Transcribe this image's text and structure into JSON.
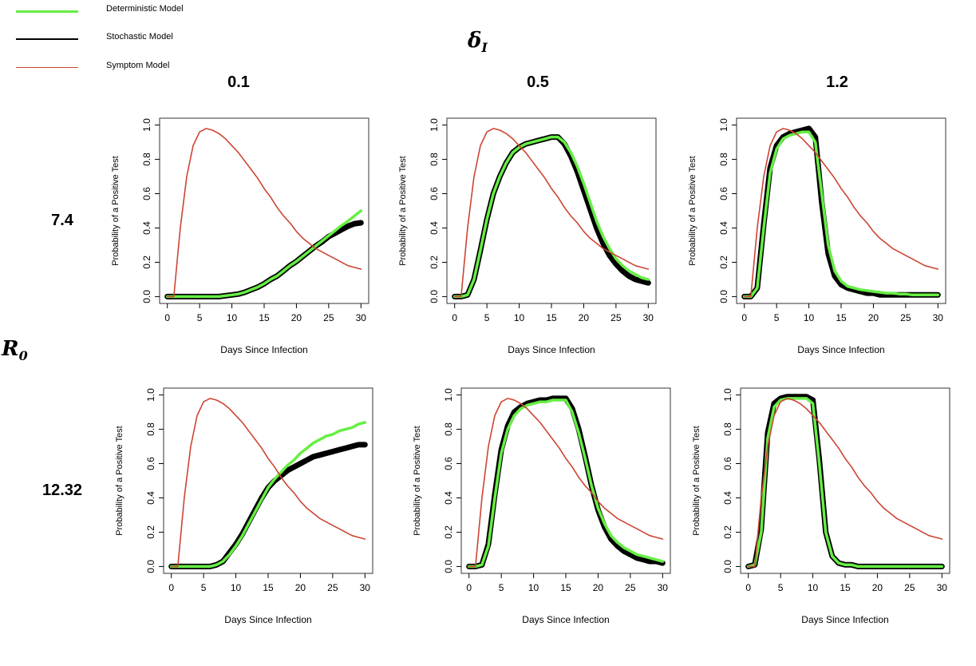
{
  "legend": {
    "items": [
      {
        "label": "Deterministic Model",
        "color": "#66ee44"
      },
      {
        "label": "Stochastic Model",
        "color": "#000000"
      },
      {
        "label": "Symptom Model",
        "color": "#cd4433"
      }
    ]
  },
  "delta_symbol": {
    "base": "δ",
    "sub": "I"
  },
  "r0_symbol": {
    "base": "R",
    "sub": "0"
  },
  "columns": [
    "0.1",
    "0.5",
    "1.2"
  ],
  "rows": [
    "7.4",
    "12.32"
  ],
  "chart_data": [
    {
      "type": "line",
      "row": "7.4",
      "col": "0.1",
      "xlabel": "Days Since Infection",
      "ylabel": "Probability of a Positive Test",
      "xlim": [
        0,
        30
      ],
      "ylim": [
        0,
        1
      ],
      "xticks": [
        "0",
        "5",
        "10",
        "15",
        "20",
        "25",
        "30"
      ],
      "yticks": [
        "0.0",
        "0.2",
        "0.4",
        "0.6",
        "0.8",
        "1.0"
      ],
      "x": [
        0,
        1,
        2,
        3,
        4,
        5,
        6,
        7,
        8,
        9,
        10,
        11,
        12,
        13,
        14,
        15,
        16,
        17,
        18,
        19,
        20,
        21,
        22,
        23,
        24,
        25,
        26,
        27,
        28,
        29,
        30
      ],
      "series": [
        {
          "name": "Symptom Model",
          "values": [
            0,
            0,
            0.4,
            0.7,
            0.88,
            0.96,
            0.98,
            0.97,
            0.95,
            0.92,
            0.88,
            0.84,
            0.79,
            0.74,
            0.69,
            0.63,
            0.58,
            0.52,
            0.47,
            0.43,
            0.38,
            0.34,
            0.31,
            0.28,
            0.26,
            0.24,
            0.22,
            0.2,
            0.18,
            0.17,
            0.16
          ]
        },
        {
          "name": "Deterministic Model",
          "values": [
            0,
            0,
            0,
            0,
            0,
            0,
            0,
            0,
            0,
            0.005,
            0.01,
            0.015,
            0.025,
            0.04,
            0.055,
            0.075,
            0.1,
            0.12,
            0.15,
            0.18,
            0.205,
            0.235,
            0.265,
            0.295,
            0.325,
            0.355,
            0.385,
            0.415,
            0.44,
            0.47,
            0.5
          ]
        },
        {
          "name": "Stochastic Model",
          "values": [
            0,
            0,
            0,
            0,
            0,
            0,
            0,
            0,
            0,
            0.005,
            0.01,
            0.015,
            0.025,
            0.04,
            0.055,
            0.075,
            0.1,
            0.12,
            0.15,
            0.18,
            0.205,
            0.235,
            0.265,
            0.295,
            0.32,
            0.35,
            0.37,
            0.39,
            0.41,
            0.425,
            0.43
          ]
        }
      ]
    },
    {
      "type": "line",
      "row": "7.4",
      "col": "0.5",
      "xlabel": "Days Since Infection",
      "ylabel": "Probability of a Positive Test",
      "xlim": [
        0,
        30
      ],
      "ylim": [
        0,
        1
      ],
      "xticks": [
        "0",
        "5",
        "10",
        "15",
        "20",
        "25",
        "30"
      ],
      "yticks": [
        "0.0",
        "0.2",
        "0.4",
        "0.6",
        "0.8",
        "1.0"
      ],
      "x": [
        0,
        1,
        2,
        3,
        4,
        5,
        6,
        7,
        8,
        9,
        10,
        11,
        12,
        13,
        14,
        15,
        16,
        17,
        18,
        19,
        20,
        21,
        22,
        23,
        24,
        25,
        26,
        27,
        28,
        29,
        30
      ],
      "series": [
        {
          "name": "Symptom Model",
          "values": [
            0,
            0,
            0.4,
            0.7,
            0.88,
            0.96,
            0.98,
            0.97,
            0.95,
            0.92,
            0.88,
            0.84,
            0.79,
            0.74,
            0.69,
            0.63,
            0.58,
            0.52,
            0.47,
            0.43,
            0.38,
            0.34,
            0.31,
            0.28,
            0.26,
            0.24,
            0.22,
            0.2,
            0.18,
            0.17,
            0.16
          ]
        },
        {
          "name": "Deterministic Model",
          "values": [
            0,
            0,
            0.01,
            0.1,
            0.27,
            0.45,
            0.6,
            0.7,
            0.78,
            0.84,
            0.87,
            0.89,
            0.9,
            0.91,
            0.92,
            0.93,
            0.93,
            0.9,
            0.84,
            0.76,
            0.66,
            0.55,
            0.44,
            0.35,
            0.28,
            0.22,
            0.18,
            0.15,
            0.13,
            0.11,
            0.1
          ]
        },
        {
          "name": "Stochastic Model",
          "values": [
            0,
            0,
            0.01,
            0.1,
            0.27,
            0.45,
            0.6,
            0.7,
            0.78,
            0.84,
            0.87,
            0.89,
            0.9,
            0.91,
            0.92,
            0.93,
            0.93,
            0.89,
            0.82,
            0.73,
            0.62,
            0.51,
            0.4,
            0.31,
            0.24,
            0.19,
            0.15,
            0.12,
            0.1,
            0.09,
            0.08
          ]
        }
      ]
    },
    {
      "type": "line",
      "row": "7.4",
      "col": "1.2",
      "xlabel": "Days Since Infection",
      "ylabel": "Probability of a Positive Test",
      "xlim": [
        0,
        30
      ],
      "ylim": [
        0,
        1
      ],
      "xticks": [
        "0",
        "5",
        "10",
        "15",
        "20",
        "25",
        "30"
      ],
      "yticks": [
        "0.0",
        "0.2",
        "0.4",
        "0.6",
        "0.8",
        "1.0"
      ],
      "x": [
        0,
        1,
        2,
        3,
        4,
        5,
        6,
        7,
        8,
        9,
        10,
        11,
        12,
        13,
        14,
        15,
        16,
        17,
        18,
        19,
        20,
        21,
        22,
        23,
        24,
        25,
        26,
        27,
        28,
        29,
        30
      ],
      "series": [
        {
          "name": "Symptom Model",
          "values": [
            0,
            0,
            0.4,
            0.7,
            0.88,
            0.96,
            0.98,
            0.97,
            0.95,
            0.92,
            0.88,
            0.84,
            0.79,
            0.74,
            0.69,
            0.63,
            0.58,
            0.52,
            0.47,
            0.43,
            0.38,
            0.34,
            0.31,
            0.28,
            0.26,
            0.24,
            0.22,
            0.2,
            0.18,
            0.17,
            0.16
          ]
        },
        {
          "name": "Deterministic Model",
          "values": [
            0,
            0,
            0.05,
            0.4,
            0.72,
            0.86,
            0.92,
            0.94,
            0.95,
            0.96,
            0.96,
            0.9,
            0.6,
            0.3,
            0.15,
            0.09,
            0.06,
            0.05,
            0.04,
            0.035,
            0.03,
            0.025,
            0.02,
            0.02,
            0.015,
            0.015,
            0.01,
            0.01,
            0.01,
            0.01,
            0.01
          ]
        },
        {
          "name": "Stochastic Model",
          "values": [
            0,
            0,
            0.05,
            0.42,
            0.75,
            0.88,
            0.93,
            0.95,
            0.96,
            0.97,
            0.98,
            0.93,
            0.55,
            0.25,
            0.12,
            0.07,
            0.05,
            0.04,
            0.03,
            0.02,
            0.02,
            0.01,
            0.01,
            0.01,
            0.01,
            0.01,
            0.01,
            0.01,
            0.01,
            0.01,
            0.01
          ]
        }
      ]
    },
    {
      "type": "line",
      "row": "12.32",
      "col": "0.1",
      "xlabel": "Days Since Infection",
      "ylabel": "Probability of a Positive Test",
      "xlim": [
        0,
        30
      ],
      "ylim": [
        0,
        1
      ],
      "xticks": [
        "0",
        "5",
        "10",
        "15",
        "20",
        "25",
        "30"
      ],
      "yticks": [
        "0.0",
        "0.2",
        "0.4",
        "0.6",
        "0.8",
        "1.0"
      ],
      "x": [
        0,
        1,
        2,
        3,
        4,
        5,
        6,
        7,
        8,
        9,
        10,
        11,
        12,
        13,
        14,
        15,
        16,
        17,
        18,
        19,
        20,
        21,
        22,
        23,
        24,
        25,
        26,
        27,
        28,
        29,
        30
      ],
      "series": [
        {
          "name": "Symptom Model",
          "values": [
            0,
            0,
            0.4,
            0.7,
            0.88,
            0.96,
            0.98,
            0.97,
            0.95,
            0.92,
            0.88,
            0.84,
            0.79,
            0.74,
            0.69,
            0.63,
            0.58,
            0.52,
            0.47,
            0.43,
            0.38,
            0.34,
            0.31,
            0.28,
            0.26,
            0.24,
            0.22,
            0.2,
            0.18,
            0.17,
            0.16
          ]
        },
        {
          "name": "Deterministic Model",
          "values": [
            0,
            0,
            0,
            0,
            0,
            0,
            0,
            0.01,
            0.03,
            0.07,
            0.12,
            0.18,
            0.25,
            0.32,
            0.39,
            0.46,
            0.51,
            0.55,
            0.59,
            0.62,
            0.66,
            0.69,
            0.72,
            0.74,
            0.76,
            0.77,
            0.79,
            0.8,
            0.81,
            0.83,
            0.84
          ]
        },
        {
          "name": "Stochastic Model",
          "values": [
            0,
            0,
            0,
            0,
            0,
            0,
            0,
            0.01,
            0.03,
            0.08,
            0.13,
            0.19,
            0.26,
            0.33,
            0.4,
            0.46,
            0.5,
            0.53,
            0.56,
            0.58,
            0.6,
            0.62,
            0.64,
            0.65,
            0.66,
            0.67,
            0.68,
            0.69,
            0.7,
            0.71,
            0.71
          ]
        }
      ]
    },
    {
      "type": "line",
      "row": "12.32",
      "col": "0.5",
      "xlabel": "Days Since Infection",
      "ylabel": "Probability of a Positive Test",
      "xlim": [
        0,
        30
      ],
      "ylim": [
        0,
        1
      ],
      "xticks": [
        "0",
        "5",
        "10",
        "15",
        "20",
        "25",
        "30"
      ],
      "yticks": [
        "0.0",
        "0.2",
        "0.4",
        "0.6",
        "0.8",
        "1.0"
      ],
      "x": [
        0,
        1,
        2,
        3,
        4,
        5,
        6,
        7,
        8,
        9,
        10,
        11,
        12,
        13,
        14,
        15,
        16,
        17,
        18,
        19,
        20,
        21,
        22,
        23,
        24,
        25,
        26,
        27,
        28,
        29,
        30
      ],
      "series": [
        {
          "name": "Symptom Model",
          "values": [
            0,
            0,
            0.4,
            0.7,
            0.88,
            0.96,
            0.98,
            0.97,
            0.95,
            0.92,
            0.88,
            0.84,
            0.79,
            0.74,
            0.69,
            0.63,
            0.58,
            0.52,
            0.47,
            0.43,
            0.38,
            0.34,
            0.31,
            0.28,
            0.26,
            0.24,
            0.22,
            0.2,
            0.18,
            0.17,
            0.16
          ]
        },
        {
          "name": "Deterministic Model",
          "values": [
            0,
            0,
            0.01,
            0.12,
            0.4,
            0.66,
            0.8,
            0.88,
            0.92,
            0.94,
            0.95,
            0.96,
            0.96,
            0.97,
            0.97,
            0.97,
            0.9,
            0.78,
            0.63,
            0.47,
            0.34,
            0.25,
            0.18,
            0.14,
            0.11,
            0.09,
            0.07,
            0.06,
            0.05,
            0.04,
            0.03
          ]
        },
        {
          "name": "Stochastic Model",
          "values": [
            0,
            0,
            0.01,
            0.13,
            0.42,
            0.68,
            0.82,
            0.9,
            0.93,
            0.95,
            0.96,
            0.97,
            0.97,
            0.98,
            0.98,
            0.98,
            0.92,
            0.8,
            0.64,
            0.47,
            0.33,
            0.23,
            0.16,
            0.12,
            0.09,
            0.07,
            0.05,
            0.04,
            0.03,
            0.03,
            0.02
          ]
        }
      ]
    },
    {
      "type": "line",
      "row": "12.32",
      "col": "1.2",
      "xlabel": "Days Since Infection",
      "ylabel": "Probability of a Positive Test",
      "xlim": [
        0,
        30
      ],
      "ylim": [
        0,
        1
      ],
      "xticks": [
        "0",
        "5",
        "10",
        "15",
        "20",
        "25",
        "30"
      ],
      "yticks": [
        "0.0",
        "0.2",
        "0.4",
        "0.6",
        "0.8",
        "1.0"
      ],
      "x": [
        0,
        1,
        2,
        3,
        4,
        5,
        6,
        7,
        8,
        9,
        10,
        11,
        12,
        13,
        14,
        15,
        16,
        17,
        18,
        19,
        20,
        21,
        22,
        23,
        24,
        25,
        26,
        27,
        28,
        29,
        30
      ],
      "series": [
        {
          "name": "Symptom Model",
          "values": [
            0,
            0,
            0.4,
            0.7,
            0.88,
            0.96,
            0.98,
            0.97,
            0.95,
            0.92,
            0.88,
            0.84,
            0.79,
            0.74,
            0.69,
            0.63,
            0.58,
            0.52,
            0.47,
            0.43,
            0.38,
            0.34,
            0.31,
            0.28,
            0.26,
            0.24,
            0.22,
            0.2,
            0.18,
            0.17,
            0.16
          ]
        },
        {
          "name": "Deterministic Model",
          "values": [
            0,
            0.01,
            0.2,
            0.75,
            0.93,
            0.97,
            0.98,
            0.98,
            0.98,
            0.98,
            0.95,
            0.6,
            0.2,
            0.06,
            0.02,
            0.01,
            0.01,
            0,
            0,
            0,
            0,
            0,
            0,
            0,
            0,
            0,
            0,
            0,
            0,
            0,
            0
          ]
        },
        {
          "name": "Stochastic Model",
          "values": [
            0,
            0.01,
            0.22,
            0.78,
            0.95,
            0.98,
            0.99,
            0.99,
            0.99,
            0.99,
            0.97,
            0.62,
            0.2,
            0.06,
            0.02,
            0.01,
            0.01,
            0,
            0,
            0,
            0,
            0,
            0,
            0,
            0,
            0,
            0,
            0,
            0,
            0,
            0
          ]
        }
      ]
    }
  ]
}
